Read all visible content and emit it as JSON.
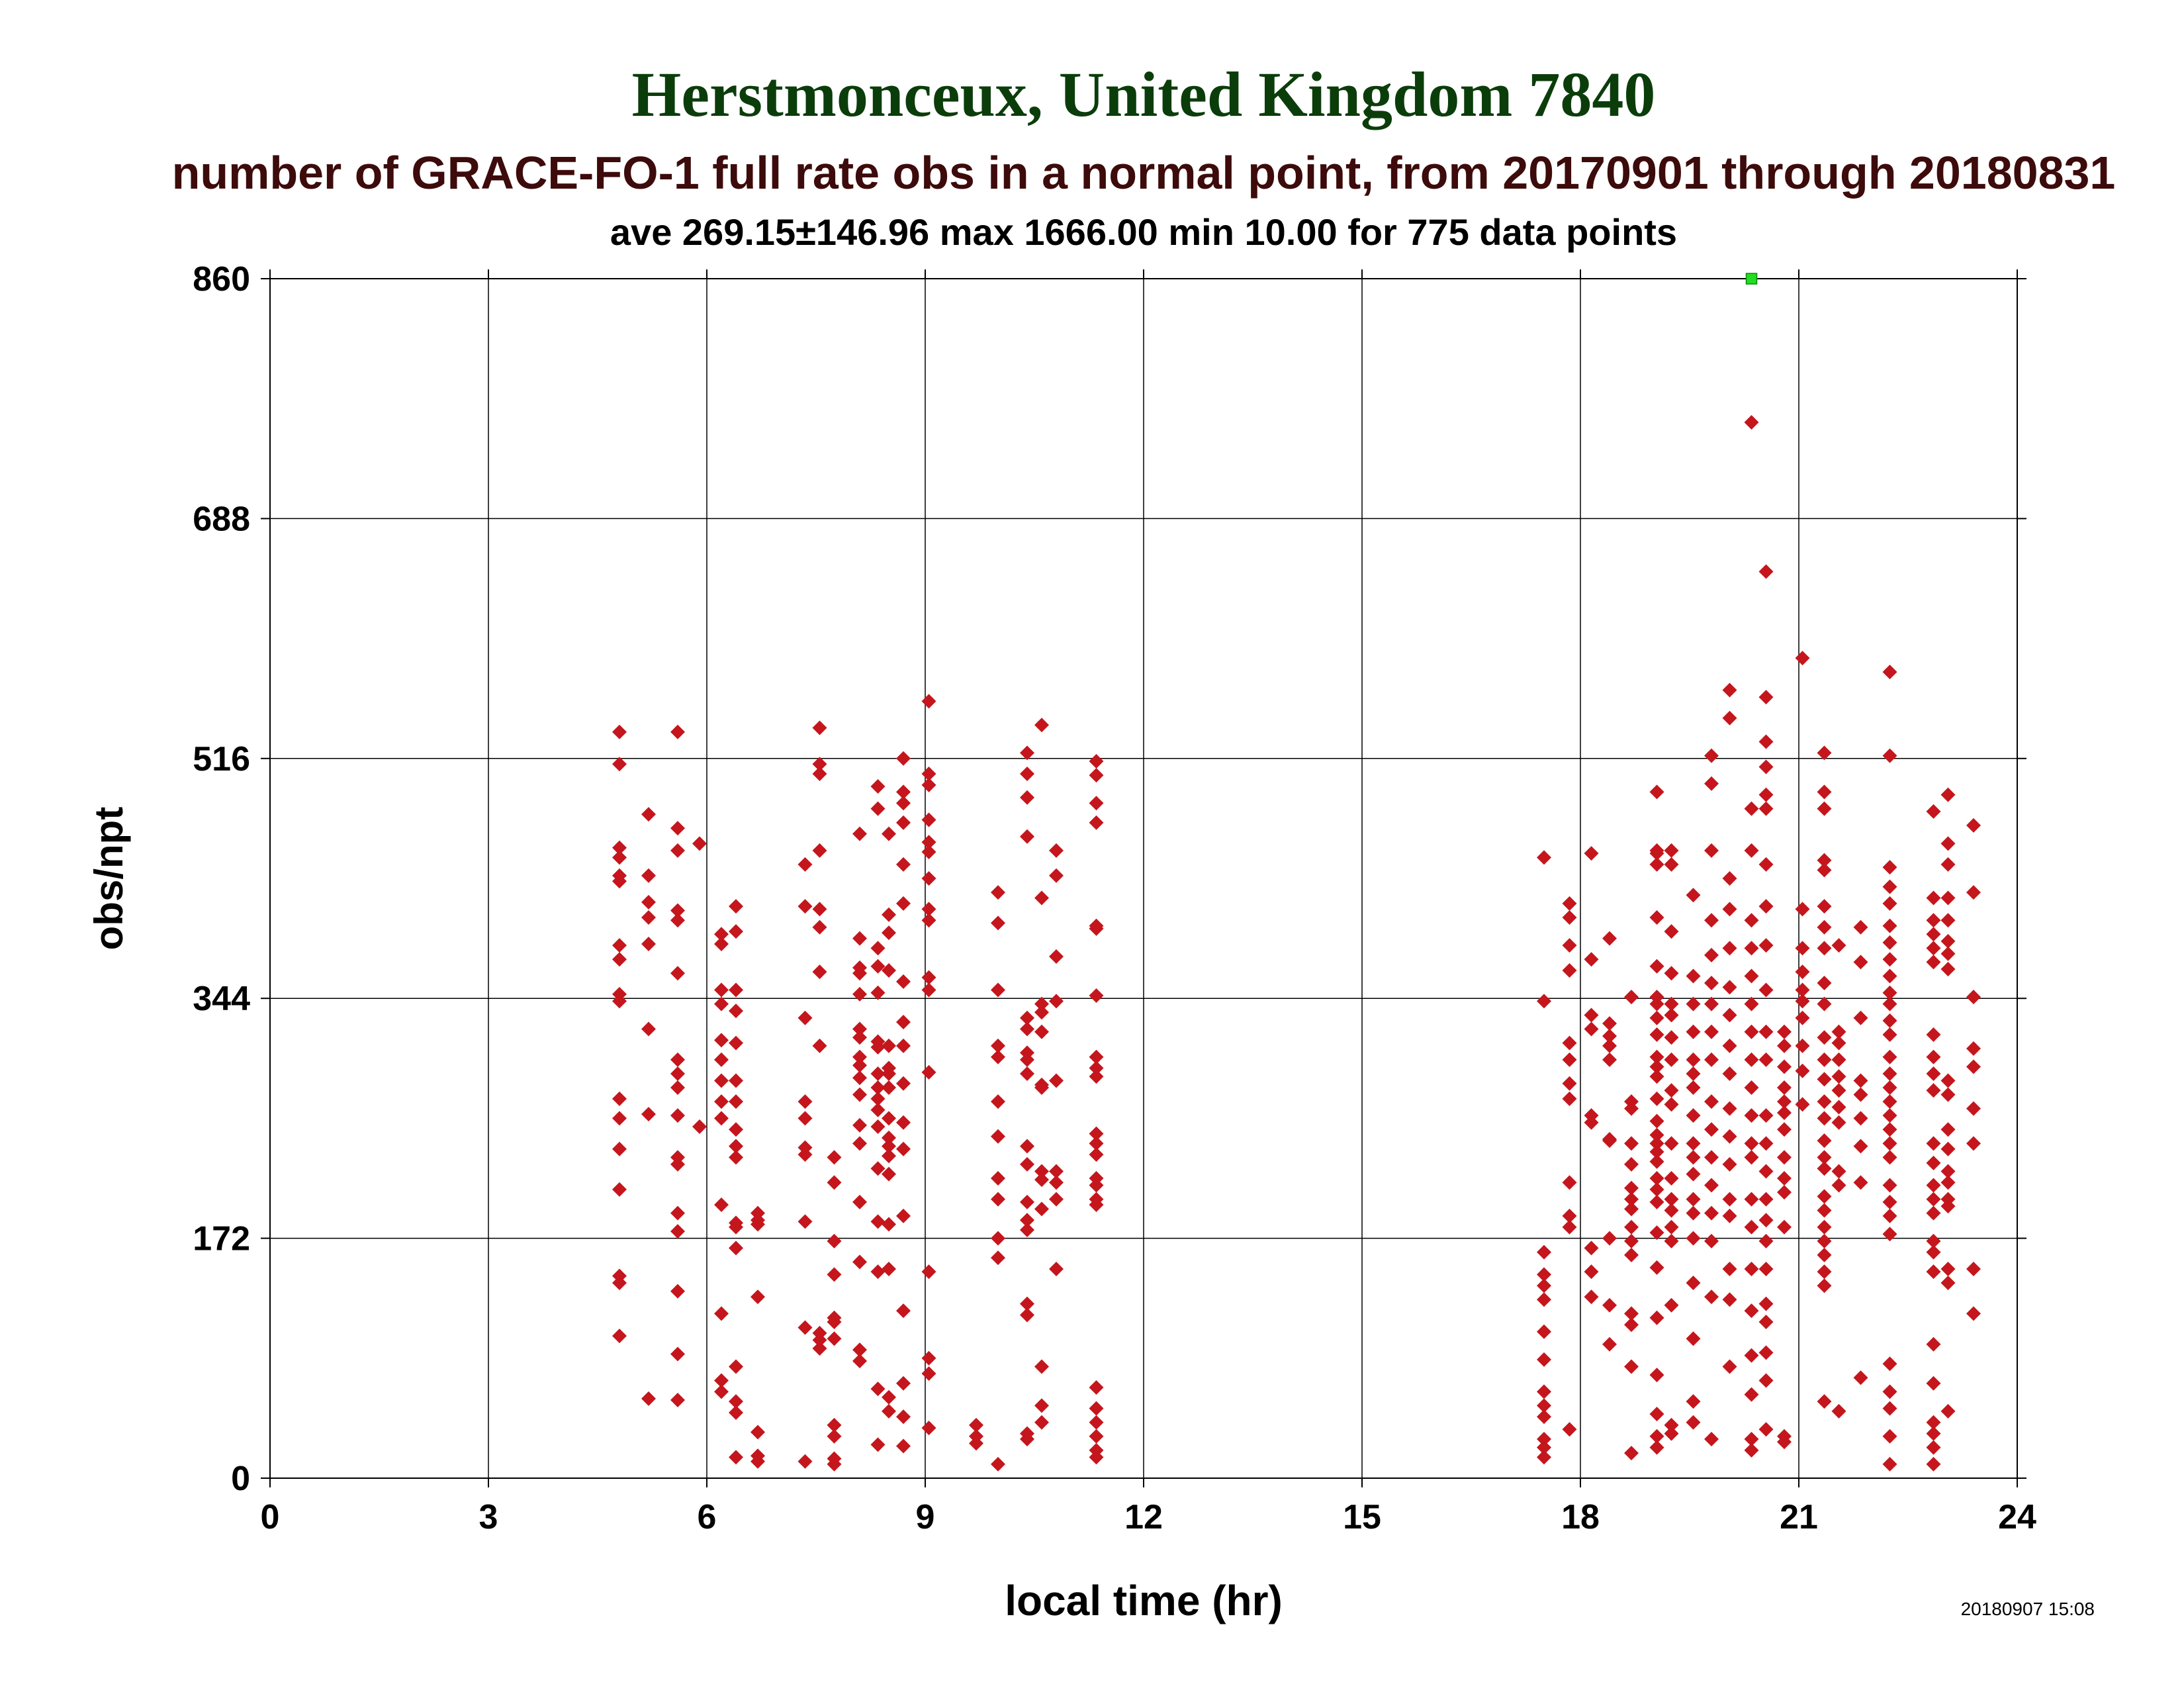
{
  "chart_data": {
    "type": "scatter",
    "title": "Herstmonceux, United Kingdom 7840",
    "subtitle": "number of GRACE-FO-1 full rate obs in a normal point, from 20170901 through 20180831",
    "stats": "ave 269.15±146.96 max 1666.00 min 10.00 for 775 data points",
    "xlabel": "local time (hr)",
    "ylabel": "obs/npt",
    "timestamp": "20180907 15:08",
    "xlim": [
      0,
      24
    ],
    "ylim": [
      0,
      860
    ],
    "xticks": [
      "0",
      "3",
      "6",
      "9",
      "12",
      "15",
      "18",
      "21",
      "24"
    ],
    "yticks": [
      "0",
      "172",
      "344",
      "516",
      "688",
      "860"
    ],
    "grid": true,
    "colors": {
      "title": "#0b3d0b",
      "subtitle": "#3d0b0b",
      "points": "#c4161c",
      "clipped": "#22dd22"
    },
    "clipped_points": [
      {
        "x": 20.35,
        "y": 860
      }
    ],
    "columns": [
      {
        "x": 4.8,
        "y": [
          535,
          512,
          452,
          445,
          432,
          428,
          382,
          372,
          347,
          342,
          272,
          258,
          236,
          207,
          145,
          140,
          102
        ]
      },
      {
        "x": 5.2,
        "y": [
          476,
          432,
          413,
          402,
          383,
          322,
          261,
          57
        ]
      },
      {
        "x": 5.6,
        "y": [
          535,
          466,
          450,
          407,
          400,
          362,
          300,
          290,
          280,
          260,
          230,
          225,
          190,
          177,
          134,
          89,
          56
        ]
      },
      {
        "x": 5.9,
        "y": [
          455,
          252
        ]
      },
      {
        "x": 6.2,
        "y": [
          390,
          383,
          350,
          340,
          314,
          300,
          285,
          270,
          258,
          196,
          118,
          70,
          62
        ]
      },
      {
        "x": 6.4,
        "y": [
          410,
          392,
          350,
          335,
          312,
          285,
          270,
          250,
          238,
          230,
          183,
          180,
          165,
          80,
          55,
          47,
          15
        ]
      },
      {
        "x": 6.7,
        "y": [
          190,
          185,
          182,
          130,
          33,
          16,
          12
        ]
      },
      {
        "x": 7.35,
        "y": [
          440,
          410,
          330,
          270,
          258,
          237,
          232,
          184,
          108,
          12
        ]
      },
      {
        "x": 7.55,
        "y": [
          538,
          512,
          505,
          450,
          408,
          395,
          363,
          310,
          104,
          99,
          93
        ]
      },
      {
        "x": 7.75,
        "y": [
          230,
          212,
          170,
          146,
          115,
          112,
          100,
          38,
          30,
          14,
          10
        ]
      },
      {
        "x": 8.1,
        "y": [
          462,
          387,
          366,
          362,
          347,
          322,
          316,
          302,
          296,
          287,
          275,
          253,
          240,
          198,
          155,
          92,
          84
        ]
      },
      {
        "x": 8.35,
        "y": [
          496,
          480,
          380,
          367,
          348,
          313,
          309,
          290,
          280,
          272,
          264,
          252,
          222,
          184,
          148,
          64,
          24
        ]
      },
      {
        "x": 8.5,
        "y": [
          462,
          404,
          391,
          364,
          310,
          294,
          290,
          280,
          258,
          244,
          238,
          231,
          218,
          182,
          150,
          58,
          48
        ]
      },
      {
        "x": 8.7,
        "y": [
          516,
          492,
          484,
          470,
          440,
          412,
          356,
          327,
          310,
          283,
          255,
          236,
          188,
          120,
          68,
          44,
          23
        ]
      },
      {
        "x": 9.05,
        "y": [
          557,
          505,
          497,
          472,
          456,
          449,
          430,
          408,
          400,
          359,
          350,
          291,
          148,
          86,
          75,
          36
        ]
      },
      {
        "x": 9.7,
        "y": [
          38,
          30,
          25
        ]
      },
      {
        "x": 10.0,
        "y": [
          420,
          398,
          350,
          310,
          302,
          270,
          245,
          215,
          200,
          172,
          158,
          10
        ]
      },
      {
        "x": 10.4,
        "y": [
          520,
          505,
          488,
          460,
          330,
          322,
          305,
          300,
          290,
          238,
          225,
          198,
          185,
          178,
          125,
          117,
          32,
          28
        ]
      },
      {
        "x": 10.6,
        "y": [
          540,
          416,
          340,
          334,
          320,
          282,
          280,
          220,
          214,
          193,
          80,
          52,
          40
        ]
      },
      {
        "x": 10.8,
        "y": [
          450,
          432,
          374,
          342,
          285,
          220,
          212,
          200,
          150
        ]
      },
      {
        "x": 11.35,
        "y": [
          514,
          504,
          484,
          470,
          394,
          396,
          346,
          302,
          294,
          288,
          247,
          240,
          232,
          215,
          210,
          200,
          196,
          65,
          50,
          40,
          30,
          20,
          15
        ]
      },
      {
        "x": 17.5,
        "y": [
          445,
          342,
          162,
          146,
          138,
          128,
          105,
          85,
          62,
          52,
          44,
          28,
          22,
          15
        ]
      },
      {
        "x": 17.85,
        "y": [
          412,
          402,
          382,
          364,
          312,
          300,
          283,
          272,
          212,
          188,
          180,
          35
        ]
      },
      {
        "x": 18.15,
        "y": [
          448,
          372,
          332,
          322,
          260,
          255,
          165,
          148,
          130
        ]
      },
      {
        "x": 18.4,
        "y": [
          387,
          326,
          317,
          310,
          300,
          243,
          242,
          172,
          124,
          96
        ]
      },
      {
        "x": 18.7,
        "y": [
          345,
          270,
          265,
          240,
          225,
          208,
          200,
          193,
          180,
          170,
          160,
          118,
          110,
          80,
          18
        ]
      },
      {
        "x": 19.05,
        "y": [
          492,
          450,
          448,
          440,
          402,
          367,
          345,
          340,
          330,
          318,
          302,
          295,
          288,
          272,
          256,
          246,
          240,
          234,
          227,
          215,
          207,
          198,
          176,
          151,
          115,
          74,
          46,
          30,
          22
        ]
      },
      {
        "x": 19.25,
        "y": [
          450,
          440,
          392,
          362,
          340,
          332,
          316,
          300,
          278,
          268,
          240,
          215,
          200,
          192,
          180,
          170,
          124,
          38,
          32
        ]
      },
      {
        "x": 19.55,
        "y": [
          418,
          360,
          340,
          320,
          300,
          290,
          280,
          260,
          240,
          230,
          218,
          200,
          190,
          172,
          140,
          100,
          55,
          40
        ]
      },
      {
        "x": 19.8,
        "y": [
          518,
          498,
          450,
          400,
          375,
          355,
          340,
          320,
          300,
          270,
          250,
          230,
          210,
          190,
          170,
          130,
          28
        ]
      },
      {
        "x": 20.05,
        "y": [
          565,
          545,
          430,
          408,
          380,
          352,
          332,
          310,
          290,
          265,
          245,
          225,
          200,
          188,
          150,
          128,
          80
        ]
      },
      {
        "x": 20.35,
        "y": [
          757,
          480,
          450,
          400,
          380,
          360,
          340,
          320,
          300,
          280,
          260,
          240,
          230,
          200,
          180,
          150,
          120,
          88,
          60,
          28,
          20
        ]
      },
      {
        "x": 20.55,
        "y": [
          650,
          560,
          528,
          510,
          490,
          480,
          440,
          410,
          382,
          350,
          320,
          300,
          260,
          240,
          220,
          200,
          185,
          170,
          150,
          125,
          112,
          90,
          70,
          35
        ]
      },
      {
        "x": 20.8,
        "y": [
          320,
          310,
          295,
          280,
          270,
          262,
          250,
          230,
          215,
          205,
          180,
          30,
          26
        ]
      },
      {
        "x": 21.05,
        "y": [
          588,
          408,
          380,
          363,
          350,
          342,
          330,
          310,
          292,
          268
        ]
      },
      {
        "x": 21.35,
        "y": [
          520,
          492,
          480,
          443,
          436,
          410,
          395,
          380,
          355,
          340,
          316,
          300,
          286,
          270,
          258,
          242,
          230,
          222,
          202,
          192,
          180,
          170,
          160,
          148,
          138,
          55
        ]
      },
      {
        "x": 21.55,
        "y": [
          382,
          320,
          312,
          300,
          288,
          278,
          266,
          255,
          220,
          210,
          48
        ]
      },
      {
        "x": 21.85,
        "y": [
          395,
          370,
          330,
          285,
          275,
          258,
          238,
          212,
          72
        ]
      },
      {
        "x": 22.25,
        "y": [
          578,
          518,
          438,
          424,
          412,
          396,
          384,
          372,
          360,
          348,
          340,
          328,
          318,
          302,
          290,
          280,
          270,
          260,
          250,
          240,
          230,
          210,
          198,
          188,
          175,
          82,
          62,
          50,
          30,
          10
        ]
      },
      {
        "x": 22.85,
        "y": [
          478,
          416,
          400,
          390,
          380,
          370,
          318,
          302,
          290,
          278,
          240,
          226,
          210,
          200,
          190,
          170,
          162,
          148,
          96,
          68,
          40,
          32,
          22,
          10
        ]
      },
      {
        "x": 23.05,
        "y": [
          490,
          455,
          440,
          416,
          400,
          385,
          376,
          365,
          285,
          275,
          250,
          236,
          220,
          212,
          200,
          195,
          150,
          140,
          48
        ]
      },
      {
        "x": 23.4,
        "y": [
          468,
          420,
          345,
          308,
          295,
          265,
          240,
          150,
          118
        ]
      }
    ]
  }
}
